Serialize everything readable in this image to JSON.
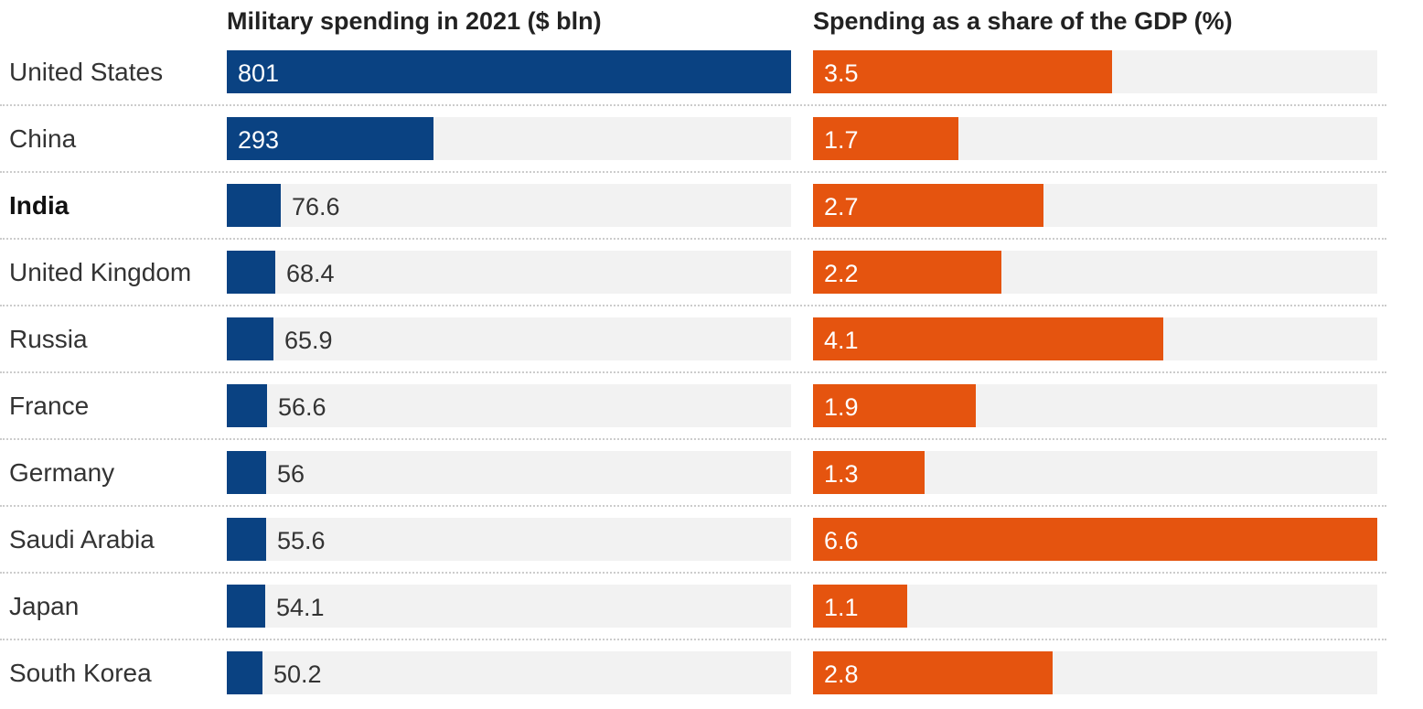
{
  "chart_data": {
    "type": "bar",
    "categories": [
      "United States",
      "China",
      "India",
      "United Kingdom",
      "Russia",
      "France",
      "Germany",
      "Saudi Arabia",
      "Japan",
      "South Korea"
    ],
    "highlight": "India",
    "series": [
      {
        "name": "Military spending in 2021 ($ bln)",
        "values": [
          801,
          293,
          76.6,
          68.4,
          65.9,
          56.6,
          56,
          55.6,
          54.1,
          50.2
        ],
        "labels": [
          "801",
          "293",
          "76.6",
          "68.4",
          "65.9",
          "56.6",
          "56",
          "55.6",
          "54.1",
          "50.2"
        ],
        "color": "#0a4282",
        "max": 801
      },
      {
        "name": "Spending as a share of the GDP (%)",
        "values": [
          3.5,
          1.7,
          2.7,
          2.2,
          4.1,
          1.9,
          1.3,
          6.6,
          1.1,
          2.8
        ],
        "labels": [
          "3.5",
          "1.7",
          "2.7",
          "2.2",
          "4.1",
          "1.9",
          "1.3",
          "6.6",
          "1.1",
          "2.8"
        ],
        "color": "#e5540f",
        "max": 6.6
      }
    ],
    "track_color": "#f2f2f2"
  }
}
